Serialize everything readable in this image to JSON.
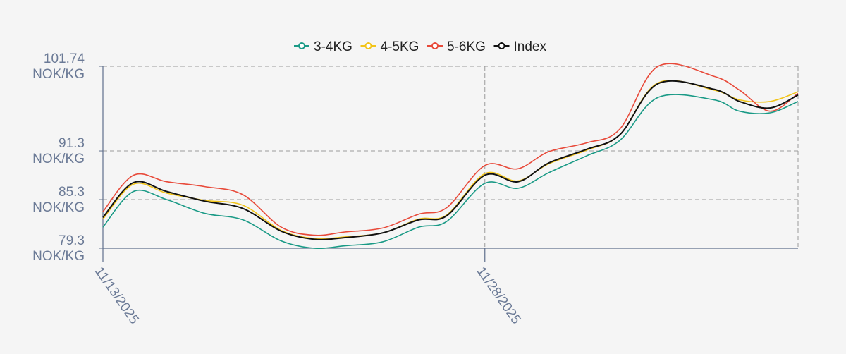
{
  "chart_data": {
    "type": "line",
    "title": "",
    "xlabel": "",
    "ylabel": "",
    "x_tick_labels": [
      "11/13/2025",
      "11/28/2025"
    ],
    "x_tick_days": [
      0,
      15
    ],
    "y_ticks": [
      {
        "value": 79.3,
        "label": "79.3",
        "unit": "NOK/KG"
      },
      {
        "value": 85.3,
        "label": "85.3",
        "unit": "NOK/KG"
      },
      {
        "value": 91.3,
        "label": "91.3",
        "unit": "NOK/KG"
      },
      {
        "value": 101.74,
        "label": "101.74",
        "unit": "NOK/KG"
      }
    ],
    "ylim": [
      79.3,
      101.74
    ],
    "xlim_days": [
      0,
      27.3
    ],
    "grid": true,
    "legend_position": "top-center",
    "series": [
      {
        "name": "3-4KG",
        "color": "#1a9a86",
        "points": [
          [
            0,
            81.9
          ],
          [
            1.2,
            86.3
          ],
          [
            2.5,
            85.3
          ],
          [
            4,
            83.6
          ],
          [
            5.5,
            82.8
          ],
          [
            7,
            80.2
          ],
          [
            8.3,
            79.3
          ],
          [
            9.5,
            79.6
          ],
          [
            11,
            80.1
          ],
          [
            12.4,
            81.9
          ],
          [
            13.5,
            82.6
          ],
          [
            15,
            87.3
          ],
          [
            16.3,
            86.7
          ],
          [
            17.5,
            88.6
          ],
          [
            19,
            90.7
          ],
          [
            20.3,
            92.6
          ],
          [
            21.8,
            97.9
          ],
          [
            24,
            97.6
          ],
          [
            25,
            96.2
          ],
          [
            26.2,
            96.0
          ],
          [
            27.3,
            97.4
          ]
        ]
      },
      {
        "name": "4-5KG",
        "color": "#f2c419",
        "points": [
          [
            0,
            82.9
          ],
          [
            1.2,
            87.2
          ],
          [
            2.5,
            86.1
          ],
          [
            4,
            85.2
          ],
          [
            5.5,
            84.6
          ],
          [
            7,
            81.5
          ],
          [
            8.3,
            80.5
          ],
          [
            9.5,
            80.7
          ],
          [
            11,
            81.2
          ],
          [
            12.4,
            82.9
          ],
          [
            13.5,
            83.4
          ],
          [
            15,
            88.5
          ],
          [
            16.3,
            87.6
          ],
          [
            17.5,
            89.7
          ],
          [
            19,
            91.4
          ],
          [
            20.3,
            93.3
          ],
          [
            21.8,
            99.7
          ],
          [
            24,
            98.8
          ],
          [
            25,
            97.6
          ],
          [
            26.2,
            97.4
          ],
          [
            27.3,
            98.6
          ]
        ]
      },
      {
        "name": "5-6KG",
        "color": "#e84a3a",
        "points": [
          [
            0,
            83.8
          ],
          [
            1.2,
            88.3
          ],
          [
            2.5,
            87.5
          ],
          [
            4,
            86.9
          ],
          [
            5.5,
            85.9
          ],
          [
            7,
            81.9
          ],
          [
            8.3,
            80.9
          ],
          [
            9.5,
            81.3
          ],
          [
            11,
            81.8
          ],
          [
            12.4,
            83.5
          ],
          [
            13.5,
            84.3
          ],
          [
            15,
            89.5
          ],
          [
            16.3,
            89.1
          ],
          [
            17.5,
            91.2
          ],
          [
            19,
            92.3
          ],
          [
            20.3,
            94.0
          ],
          [
            21.8,
            101.74
          ],
          [
            24,
            100.5
          ],
          [
            25,
            98.8
          ],
          [
            26.2,
            96.2
          ],
          [
            27.3,
            98.4
          ]
        ]
      },
      {
        "name": "Index",
        "color": "#111111",
        "points": [
          [
            0,
            83.1
          ],
          [
            1.2,
            87.4
          ],
          [
            2.5,
            86.3
          ],
          [
            4,
            85.1
          ],
          [
            5.5,
            84.2
          ],
          [
            7,
            81.4
          ],
          [
            8.3,
            80.4
          ],
          [
            9.5,
            80.6
          ],
          [
            11,
            81.2
          ],
          [
            12.4,
            82.8
          ],
          [
            13.5,
            83.3
          ],
          [
            15,
            88.3
          ],
          [
            16.3,
            87.5
          ],
          [
            17.5,
            89.8
          ],
          [
            19,
            91.5
          ],
          [
            20.3,
            93.3
          ],
          [
            21.8,
            99.6
          ],
          [
            24,
            98.9
          ],
          [
            25,
            97.4
          ],
          [
            26.2,
            96.6
          ],
          [
            27.3,
            98.2
          ]
        ]
      }
    ]
  }
}
